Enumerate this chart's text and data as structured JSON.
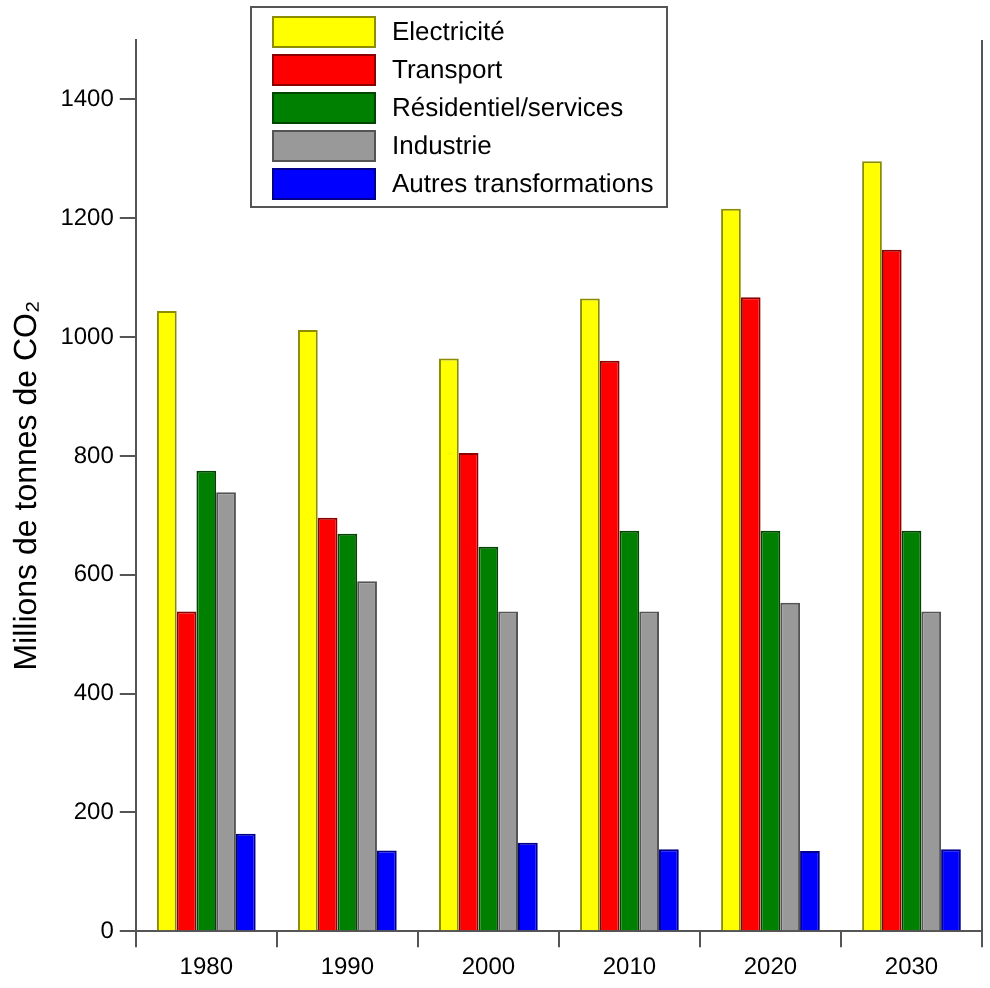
{
  "chart_data": {
    "type": "bar",
    "ylabel": "Millions de tonnes de CO₂",
    "categories": [
      "1980",
      "1990",
      "2000",
      "2010",
      "2020",
      "2030"
    ],
    "series": [
      {
        "name": "Electricité",
        "color": "#ffff00",
        "values": [
          1044,
          1012,
          964,
          1065,
          1216,
          1296
        ]
      },
      {
        "name": "Transport",
        "color": "#ff0000",
        "values": [
          538,
          696,
          805,
          960,
          1067,
          1147
        ]
      },
      {
        "name": "Résidentiel/services",
        "color": "#008000",
        "values": [
          775,
          669,
          647,
          674,
          674,
          674
        ]
      },
      {
        "name": "Industrie",
        "color": "#999999",
        "values": [
          739,
          589,
          538,
          538,
          553,
          538
        ]
      },
      {
        "name": "Autres transformations",
        "color": "#0000ff",
        "values": [
          164,
          136,
          149,
          138,
          135,
          138
        ]
      }
    ],
    "ylim": [
      0,
      1500
    ],
    "yticks": [
      0,
      200,
      400,
      600,
      800,
      1000,
      1200,
      1400
    ],
    "grid": false,
    "legend": "top"
  }
}
